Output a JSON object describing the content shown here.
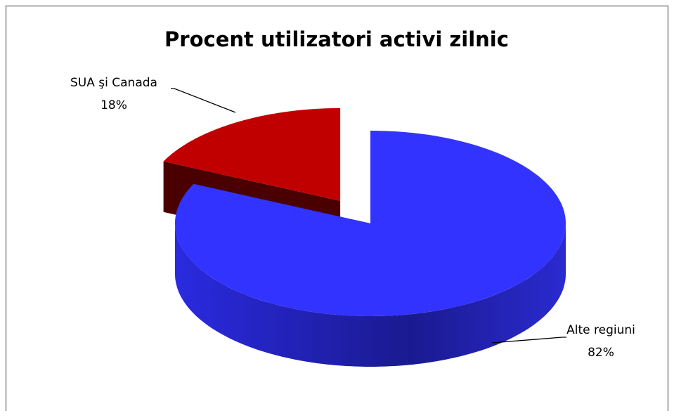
{
  "chart_data": {
    "type": "pie",
    "title": "Procent utilizatori activi zilnic",
    "categories": [
      "SUA şi Canada",
      "Alte regiuni"
    ],
    "values": [
      18,
      82
    ],
    "value_labels": [
      "18%",
      "82%"
    ],
    "colors": [
      "#c00000",
      "#3333ff"
    ],
    "exploded": [
      true,
      false
    ]
  }
}
